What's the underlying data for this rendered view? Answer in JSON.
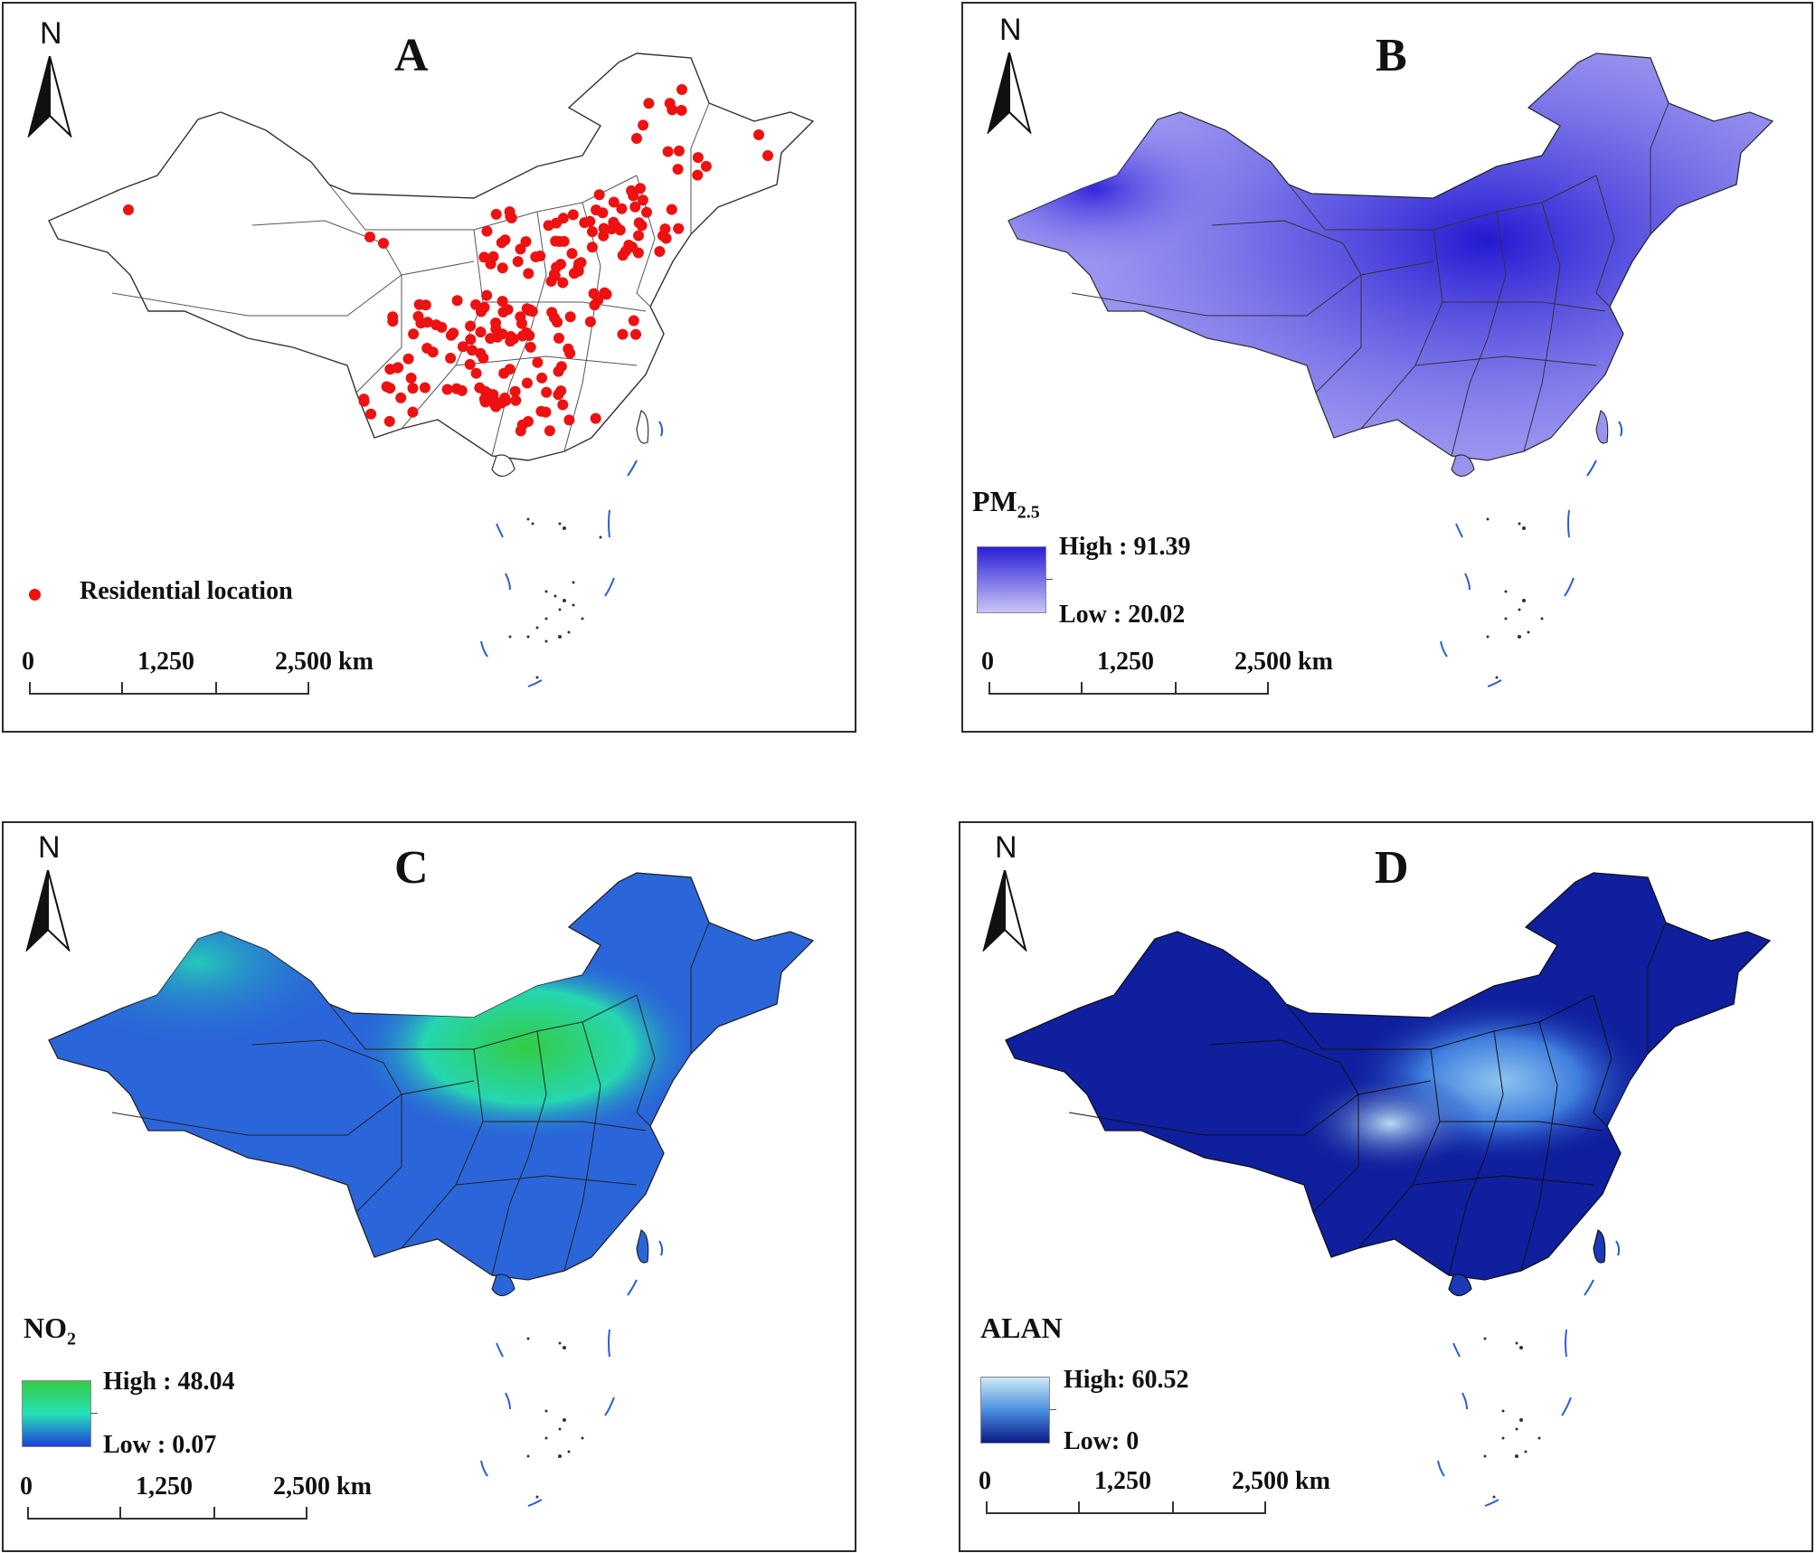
{
  "panels": {
    "a": {
      "label": "A",
      "north": "N",
      "legend": {
        "marker_color": "#ee1111",
        "label": "Residential location"
      }
    },
    "b": {
      "label": "B",
      "north": "N",
      "legend": {
        "title_main": "PM",
        "title_sub": "2.5",
        "high": "High : 91.39",
        "low": "Low : 20.02",
        "ramp": [
          "#c9c5f5",
          "#2a1fd6"
        ]
      }
    },
    "c": {
      "label": "C",
      "north": "N",
      "legend": {
        "title_main": "NO",
        "title_sub": "2",
        "high": "High : 48.04",
        "low": "Low : 0.07",
        "ramp": [
          "#1f3fd8",
          "#25e0b8",
          "#33cc44"
        ]
      }
    },
    "d": {
      "label": "D",
      "north": "N",
      "legend": {
        "title_main": "ALAN",
        "title_sub": "",
        "high": "High: 60.52",
        "low": "Low: 0",
        "ramp": [
          "#0b1a8a",
          "#4a8fe0",
          "#cde8f7"
        ]
      }
    }
  },
  "scale_bar": {
    "zero": "0",
    "mid": "1,250",
    "end": "2,500 km"
  },
  "fill_colors": {
    "b": "#8a84ee",
    "c": "#2a66d9",
    "d": "#0f1f9e"
  }
}
